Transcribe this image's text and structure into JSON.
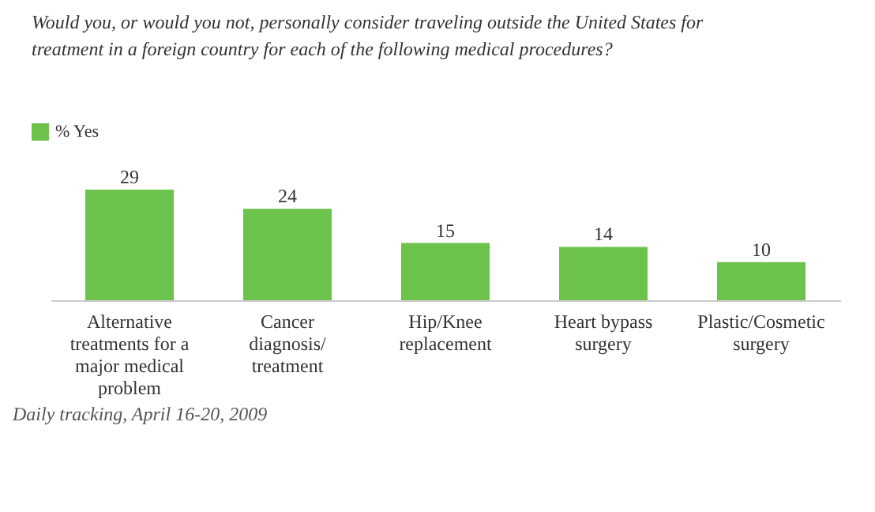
{
  "chart_data": {
    "type": "bar",
    "title": "Would you, or would you not, personally consider traveling outside the United States for treatment in a foreign country for each of the following medical procedures?",
    "categories": [
      "Alternative treatments for a major medical problem",
      "Cancer diagnosis/ treatment",
      "Hip/Knee replacement",
      "Heart bypass surgery",
      "Plastic/Cosmetic surgery"
    ],
    "series": [
      {
        "name": "% Yes",
        "color": "#6cc24a",
        "values": [
          29,
          24,
          15,
          14,
          10
        ]
      }
    ],
    "data_labels": true,
    "legend": "top left",
    "grid": false,
    "annotations": [
      "Daily tracking, April 16-20, 2009"
    ]
  }
}
